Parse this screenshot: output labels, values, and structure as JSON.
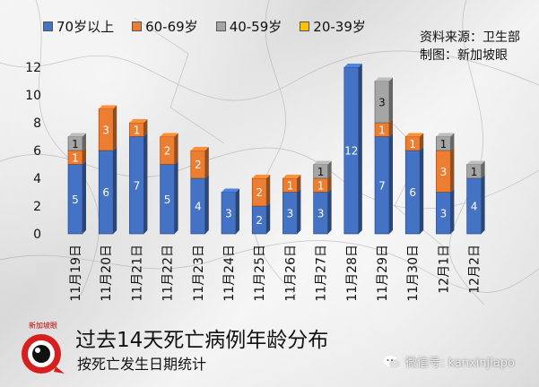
{
  "legend": {
    "items": [
      {
        "label": "70岁以上",
        "color": "#4472c4"
      },
      {
        "label": "60-69岁",
        "color": "#ed7d31"
      },
      {
        "label": "40-59岁",
        "color": "#a5a5a5"
      },
      {
        "label": "20-39岁",
        "color": "#ffc000"
      }
    ]
  },
  "source": {
    "line1": "资料来源：卫生部",
    "line2": "制图：新加坡眼"
  },
  "title": "过去14天死亡病例年龄分布",
  "subtitle": "按死亡发生日期统计",
  "logo_text": "新加坡眼",
  "wechat": {
    "label": "微信号: kanxinjiapo",
    "icon": "wechat-icon"
  },
  "chart_data": {
    "type": "bar",
    "stacked": true,
    "categories": [
      "11月19日",
      "11月20日",
      "11月21日",
      "11月22日",
      "11月23日",
      "11月24日",
      "11月25日",
      "11月26日",
      "11月27日",
      "11月28日",
      "11月29日",
      "11月30日",
      "12月1日",
      "12月2日"
    ],
    "series": [
      {
        "name": "70岁以上",
        "color": "#4472c4",
        "values": [
          5,
          6,
          7,
          5,
          4,
          3,
          2,
          3,
          3,
          12,
          7,
          6,
          3,
          4
        ]
      },
      {
        "name": "60-69岁",
        "color": "#ed7d31",
        "values": [
          1,
          3,
          1,
          2,
          2,
          0,
          2,
          1,
          1,
          0,
          1,
          1,
          3,
          0
        ]
      },
      {
        "name": "40-59岁",
        "color": "#a5a5a5",
        "values": [
          1,
          0,
          0,
          0,
          0,
          0,
          0,
          0,
          1,
          0,
          3,
          0,
          1,
          1
        ]
      },
      {
        "name": "20-39岁",
        "color": "#ffc000",
        "values": [
          0,
          0,
          0,
          0,
          0,
          0,
          0,
          0,
          0,
          0,
          0,
          0,
          0,
          0
        ]
      }
    ],
    "y_ticks": [
      0,
      2,
      4,
      6,
      8,
      10,
      12
    ],
    "ylim": [
      0,
      13
    ],
    "grid": false,
    "legend_position": "top-left"
  }
}
